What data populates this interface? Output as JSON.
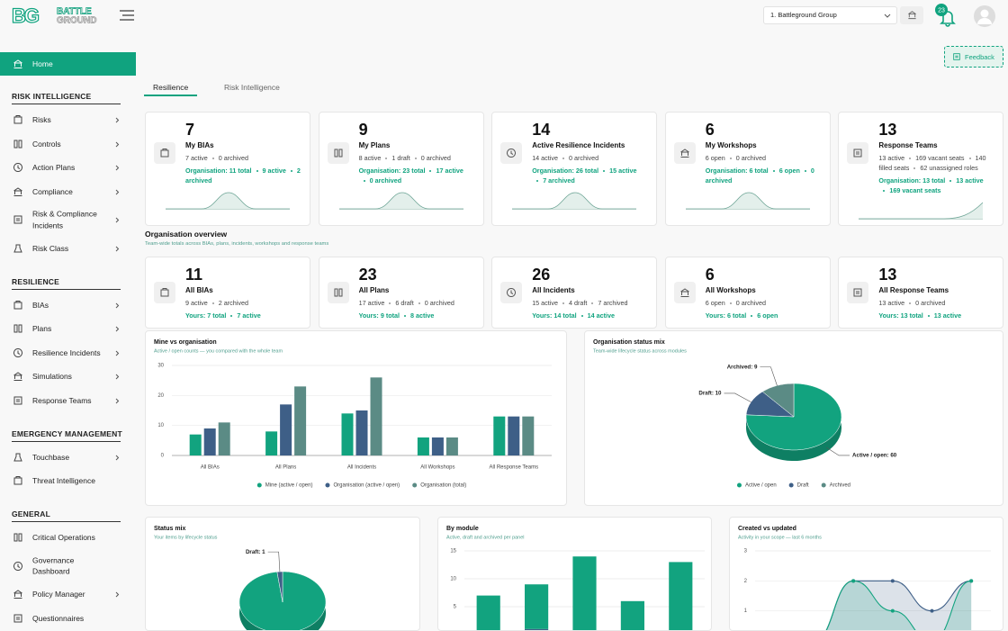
{
  "header": {
    "logo": {
      "monogram": "BG",
      "line1": "BATTLE",
      "line2": "GROUND"
    },
    "group_select": "1. Battleground Group",
    "notification_count": 23
  },
  "sidebar": {
    "home": "Home",
    "sections": [
      {
        "title": "RISK INTELLIGENCE",
        "items": [
          {
            "label": "Risks",
            "chevron": true
          },
          {
            "label": "Controls",
            "chevron": true
          },
          {
            "label": "Action Plans",
            "chevron": true
          },
          {
            "label": "Compliance",
            "chevron": true
          },
          {
            "label": "Risk & Compliance Incidents",
            "chevron": true
          },
          {
            "label": "Risk Class",
            "chevron": true
          }
        ]
      },
      {
        "title": "RESILIENCE",
        "items": [
          {
            "label": "BIAs",
            "chevron": true
          },
          {
            "label": "Plans",
            "chevron": true
          },
          {
            "label": "Resilience Incidents",
            "chevron": true
          },
          {
            "label": "Simulations",
            "chevron": true
          },
          {
            "label": "Response Teams",
            "chevron": true
          }
        ]
      },
      {
        "title": "EMERGENCY MANAGEMENT",
        "items": [
          {
            "label": "Touchbase",
            "chevron": true
          },
          {
            "label": "Threat Intelligence",
            "chevron": false
          }
        ]
      },
      {
        "title": "GENERAL",
        "items": [
          {
            "label": "Critical Operations",
            "chevron": false
          },
          {
            "label": "Governance Dashboard",
            "chevron": false
          },
          {
            "label": "Policy Manager",
            "chevron": true
          },
          {
            "label": "Questionnaires",
            "chevron": false
          }
        ]
      }
    ]
  },
  "feedback": "Feedback",
  "tabs": {
    "items": [
      "Resilience",
      "Risk Intelligence"
    ],
    "active": 0
  },
  "my_cards": [
    {
      "count": 7,
      "title": "My BIAs",
      "stats": [
        "7 active",
        "0 archived"
      ],
      "organisation": [
        "Organisation: 11 total",
        "9 active",
        "2 archived"
      ]
    },
    {
      "count": 9,
      "title": "My Plans",
      "stats": [
        "8 active",
        "1 draft",
        "0 archived"
      ],
      "organisation": [
        "Organisation: 23 total",
        "17 active",
        "0 archived"
      ]
    },
    {
      "count": 14,
      "title": "Active Resilience Incidents",
      "stats": [
        "14 active",
        "0 archived"
      ],
      "organisation": [
        "Organisation: 26 total",
        "15 active",
        "7 archived"
      ]
    },
    {
      "count": 6,
      "title": "My Workshops",
      "stats": [
        "6 open",
        "0 archived"
      ],
      "organisation": [
        "Organisation: 6 total",
        "6 open",
        "0 archived"
      ]
    },
    {
      "count": 13,
      "title": "Response Teams",
      "stats": [
        "13 active",
        "169 vacant seats",
        "140 filled seats",
        "62 unassigned roles"
      ],
      "organisation": [
        "Organisation: 13 total",
        "13 active",
        "169 vacant seats"
      ]
    }
  ],
  "overview": {
    "title": "Organisation overview",
    "subtitle": "Team-wide totals across BIAs, plans, incidents, workshops and response teams",
    "cards": [
      {
        "count": 11,
        "title": "All BIAs",
        "stats": [
          "9 active",
          "2 archived"
        ],
        "yours": [
          "Yours: 7 total",
          "7 active"
        ]
      },
      {
        "count": 23,
        "title": "All Plans",
        "stats": [
          "17 active",
          "6 draft",
          "0 archived"
        ],
        "yours": [
          "Yours: 9 total",
          "8 active"
        ]
      },
      {
        "count": 26,
        "title": "All Incidents",
        "stats": [
          "15 active",
          "4 draft",
          "7 archived"
        ],
        "yours": [
          "Yours: 14 total",
          "14 active"
        ]
      },
      {
        "count": 6,
        "title": "All Workshops",
        "stats": [
          "6 open",
          "0 archived"
        ],
        "yours": [
          "Yours: 6 total",
          "6 open"
        ]
      },
      {
        "count": 13,
        "title": "All Response Teams",
        "stats": [
          "13 active",
          "0 archived"
        ],
        "yours": [
          "Yours: 13 total",
          "13 active"
        ]
      }
    ]
  },
  "chart_data": [
    {
      "type": "bar",
      "title": "Mine vs organisation",
      "subtitle": "Active / open counts — you compared with the whole team",
      "categories": [
        "All BIAs",
        "All Plans",
        "All Incidents",
        "All Workshops",
        "All Response Teams"
      ],
      "series": [
        {
          "name": "Mine (active / open)",
          "color": "#12a37f",
          "values": [
            7,
            8,
            14,
            6,
            13
          ]
        },
        {
          "name": "Organisation (active / open)",
          "color": "#3e5f87",
          "values": [
            9,
            17,
            15,
            6,
            13
          ]
        },
        {
          "name": "Organisation (total)",
          "color": "#5b8b85",
          "values": [
            11,
            23,
            26,
            6,
            13
          ]
        }
      ],
      "ylim": [
        0,
        30
      ],
      "yticks": [
        0,
        10,
        20,
        30
      ],
      "grid": true
    },
    {
      "type": "pie",
      "title": "Organisation status mix",
      "subtitle": "Team-wide lifecycle status across modules",
      "categories": [
        "Active / open",
        "Draft",
        "Archived"
      ],
      "values": [
        60,
        10,
        9
      ],
      "value_labels": [
        "Active / open: 60",
        "Draft: 10",
        "Archived: 9"
      ],
      "colors": [
        "#12a37f",
        "#3e5f87",
        "#5b8b85"
      ]
    },
    {
      "type": "pie",
      "title": "Status mix",
      "subtitle": "Your items by lifecycle status",
      "values": [
        48,
        1
      ],
      "value_labels": [
        null,
        "Draft: 1"
      ],
      "colors": [
        "#12a37f",
        "#3e5f87"
      ]
    },
    {
      "type": "bar",
      "stacked": true,
      "title": "By module",
      "subtitle": "Active, draft and archived per panel",
      "categories": [
        null,
        null,
        null,
        null,
        null
      ],
      "series": [
        {
          "color": "#3e5f87",
          "values": [
            0,
            1,
            0,
            0,
            0
          ]
        },
        {
          "color": "#12a37f",
          "values": [
            7,
            8,
            14,
            6,
            13
          ]
        }
      ],
      "ylim": [
        0,
        15
      ],
      "yticks": [
        5,
        10,
        15
      ],
      "grid": true
    },
    {
      "type": "area",
      "title": "Created vs updated",
      "subtitle": "Activity in your scope — last 6 months",
      "categories": [
        null,
        null,
        null,
        null,
        null,
        null
      ],
      "series": [
        {
          "color": "#3e5f87",
          "values": [
            0,
            0,
            2,
            2,
            1,
            2
          ]
        },
        {
          "color": "#12a37f",
          "values": [
            0,
            0,
            2,
            1,
            0,
            2
          ]
        }
      ],
      "ylim": [
        0,
        3
      ],
      "yticks": [
        1,
        2,
        3
      ],
      "grid": true
    }
  ]
}
